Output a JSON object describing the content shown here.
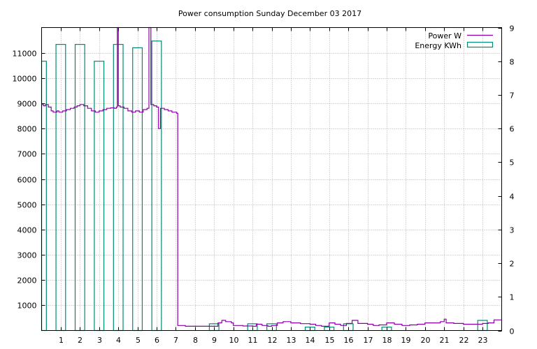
{
  "chart_data": {
    "type": "line+bar",
    "title": "Power consumption Sunday December 03 2017",
    "legend": {
      "placement": "top-right",
      "entries": [
        {
          "label": "Power W",
          "color": "#8a00a8",
          "style": "line"
        },
        {
          "label": "Energy KWh",
          "color": "#008a74",
          "style": "box"
        }
      ]
    },
    "x_axis": {
      "range": [
        0,
        24
      ],
      "ticks": [
        1,
        2,
        3,
        4,
        5,
        6,
        7,
        8,
        9,
        10,
        11,
        12,
        13,
        14,
        15,
        16,
        17,
        18,
        19,
        20,
        21,
        22,
        23
      ],
      "tick_labels": [
        "1",
        "2",
        "3",
        "4",
        "5",
        "6",
        "7",
        "8",
        "9",
        "10",
        "11",
        "12",
        "13",
        "14",
        "15",
        "16",
        "17",
        "18",
        "19",
        "20",
        "21",
        "22",
        "23"
      ],
      "grid": true
    },
    "y_axis_left": {
      "range": [
        0,
        12000
      ],
      "ticks": [
        1000,
        2000,
        3000,
        4000,
        5000,
        6000,
        7000,
        8000,
        9000,
        10000,
        11000
      ],
      "tick_labels": [
        "1000",
        "2000",
        "3000",
        "4000",
        "5000",
        "6000",
        "7000",
        "8000",
        "9000",
        "10000",
        "11000"
      ],
      "grid": true
    },
    "y_axis_right": {
      "range": [
        0,
        9
      ],
      "ticks": [
        0,
        1,
        2,
        3,
        4,
        5,
        6,
        7,
        8,
        9
      ],
      "tick_labels": [
        "0",
        "1",
        "2",
        "3",
        "4",
        "5",
        "6",
        "7",
        "8",
        "9"
      ]
    },
    "series": [
      {
        "name": "Energy KWh",
        "type": "bar",
        "axis": "right",
        "x": [
          0,
          1,
          2,
          3,
          4,
          5,
          6,
          7,
          8,
          9,
          10,
          11,
          12,
          13,
          14,
          15,
          16,
          17,
          18,
          19,
          20,
          21,
          22,
          23
        ],
        "values": [
          8.0,
          8.5,
          8.5,
          8.0,
          8.5,
          8.4,
          8.6,
          0.0,
          0.0,
          0.2,
          0.0,
          0.2,
          0.2,
          0.0,
          0.1,
          0.1,
          0.2,
          0.0,
          0.1,
          0.0,
          0.0,
          0.0,
          0.0,
          0.3
        ]
      },
      {
        "name": "Power W",
        "type": "line",
        "axis": "left",
        "points": [
          [
            0.0,
            8950
          ],
          [
            0.1,
            8900
          ],
          [
            0.2,
            8950
          ],
          [
            0.35,
            8850
          ],
          [
            0.5,
            8700
          ],
          [
            0.6,
            8650
          ],
          [
            0.8,
            8700
          ],
          [
            0.9,
            8650
          ],
          [
            1.1,
            8700
          ],
          [
            1.3,
            8750
          ],
          [
            1.5,
            8800
          ],
          [
            1.7,
            8850
          ],
          [
            1.85,
            8900
          ],
          [
            2.0,
            8950
          ],
          [
            2.2,
            8900
          ],
          [
            2.4,
            8800
          ],
          [
            2.6,
            8700
          ],
          [
            2.8,
            8650
          ],
          [
            3.0,
            8700
          ],
          [
            3.2,
            8750
          ],
          [
            3.4,
            8800
          ],
          [
            3.6,
            8820
          ],
          [
            3.8,
            8800
          ],
          [
            3.9,
            8850
          ],
          [
            3.95,
            12000
          ],
          [
            4.0,
            8900
          ],
          [
            4.1,
            8850
          ],
          [
            4.3,
            8800
          ],
          [
            4.5,
            8700
          ],
          [
            4.7,
            8650
          ],
          [
            4.9,
            8700
          ],
          [
            5.1,
            8650
          ],
          [
            5.3,
            8750
          ],
          [
            5.5,
            8800
          ],
          [
            5.6,
            12000
          ],
          [
            5.7,
            8950
          ],
          [
            5.85,
            8900
          ],
          [
            6.0,
            8850
          ],
          [
            6.1,
            8000
          ],
          [
            6.2,
            8800
          ],
          [
            6.4,
            8750
          ],
          [
            6.6,
            8700
          ],
          [
            6.8,
            8650
          ],
          [
            7.05,
            8600
          ],
          [
            7.1,
            200
          ],
          [
            7.5,
            170
          ],
          [
            8.0,
            170
          ],
          [
            8.5,
            170
          ],
          [
            9.0,
            170
          ],
          [
            9.2,
            300
          ],
          [
            9.4,
            400
          ],
          [
            9.6,
            350
          ],
          [
            9.9,
            300
          ],
          [
            10.0,
            200
          ],
          [
            10.5,
            180
          ],
          [
            11.0,
            170
          ],
          [
            11.2,
            250
          ],
          [
            11.5,
            200
          ],
          [
            11.8,
            170
          ],
          [
            12.0,
            200
          ],
          [
            12.3,
            300
          ],
          [
            12.6,
            350
          ],
          [
            13.0,
            300
          ],
          [
            13.5,
            270
          ],
          [
            14.0,
            250
          ],
          [
            14.3,
            200
          ],
          [
            14.6,
            170
          ],
          [
            15.0,
            300
          ],
          [
            15.3,
            250
          ],
          [
            15.6,
            200
          ],
          [
            15.9,
            280
          ],
          [
            16.2,
            400
          ],
          [
            16.5,
            280
          ],
          [
            17.0,
            250
          ],
          [
            17.3,
            200
          ],
          [
            17.6,
            220
          ],
          [
            18.0,
            300
          ],
          [
            18.4,
            250
          ],
          [
            18.8,
            200
          ],
          [
            19.2,
            220
          ],
          [
            19.6,
            250
          ],
          [
            20.0,
            300
          ],
          [
            20.4,
            300
          ],
          [
            20.8,
            350
          ],
          [
            21.0,
            450
          ],
          [
            21.1,
            300
          ],
          [
            21.5,
            280
          ],
          [
            22.0,
            250
          ],
          [
            22.5,
            250
          ],
          [
            23.0,
            280
          ],
          [
            23.3,
            300
          ],
          [
            23.6,
            420
          ],
          [
            24.0,
            430
          ]
        ]
      }
    ]
  }
}
